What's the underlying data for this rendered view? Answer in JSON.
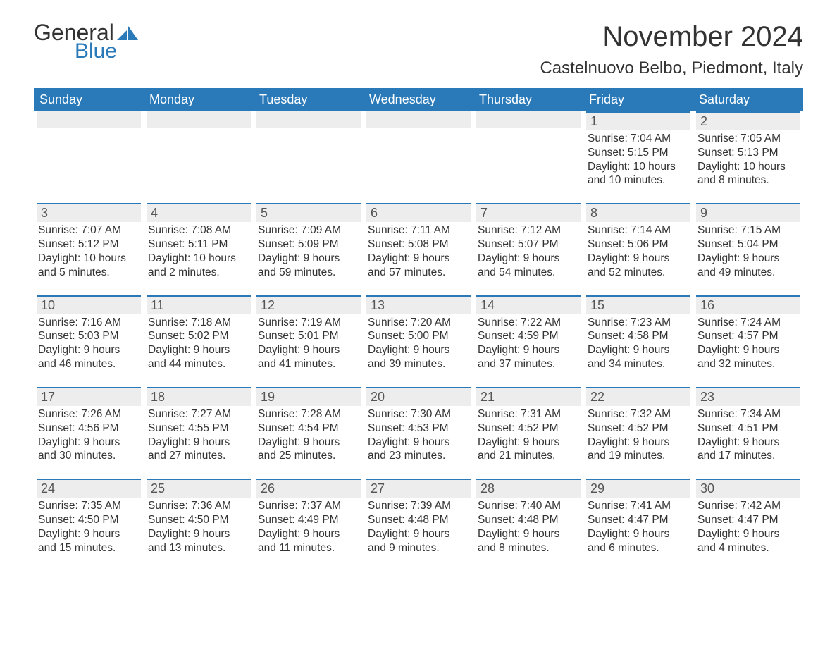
{
  "brand": {
    "word1": "General",
    "word2": "Blue",
    "accent": "#2a7ab9"
  },
  "title": "November 2024",
  "location": "Castelnuovo Belbo, Piedmont, Italy",
  "colors": {
    "header_bg": "#2a7ab9",
    "header_fg": "#ffffff",
    "daynum_bg": "#ededed",
    "daynum_border": "#2a7ab9",
    "text": "#333333",
    "page_bg": "#ffffff"
  },
  "days_of_week": [
    "Sunday",
    "Monday",
    "Tuesday",
    "Wednesday",
    "Thursday",
    "Friday",
    "Saturday"
  ],
  "weeks": [
    [
      {
        "blank": true
      },
      {
        "blank": true
      },
      {
        "blank": true
      },
      {
        "blank": true
      },
      {
        "blank": true
      },
      {
        "n": "1",
        "sunrise": "Sunrise: 7:04 AM",
        "sunset": "Sunset: 5:15 PM",
        "daylight": "Daylight: 10 hours and 10 minutes."
      },
      {
        "n": "2",
        "sunrise": "Sunrise: 7:05 AM",
        "sunset": "Sunset: 5:13 PM",
        "daylight": "Daylight: 10 hours and 8 minutes."
      }
    ],
    [
      {
        "n": "3",
        "sunrise": "Sunrise: 7:07 AM",
        "sunset": "Sunset: 5:12 PM",
        "daylight": "Daylight: 10 hours and 5 minutes."
      },
      {
        "n": "4",
        "sunrise": "Sunrise: 7:08 AM",
        "sunset": "Sunset: 5:11 PM",
        "daylight": "Daylight: 10 hours and 2 minutes."
      },
      {
        "n": "5",
        "sunrise": "Sunrise: 7:09 AM",
        "sunset": "Sunset: 5:09 PM",
        "daylight": "Daylight: 9 hours and 59 minutes."
      },
      {
        "n": "6",
        "sunrise": "Sunrise: 7:11 AM",
        "sunset": "Sunset: 5:08 PM",
        "daylight": "Daylight: 9 hours and 57 minutes."
      },
      {
        "n": "7",
        "sunrise": "Sunrise: 7:12 AM",
        "sunset": "Sunset: 5:07 PM",
        "daylight": "Daylight: 9 hours and 54 minutes."
      },
      {
        "n": "8",
        "sunrise": "Sunrise: 7:14 AM",
        "sunset": "Sunset: 5:06 PM",
        "daylight": "Daylight: 9 hours and 52 minutes."
      },
      {
        "n": "9",
        "sunrise": "Sunrise: 7:15 AM",
        "sunset": "Sunset: 5:04 PM",
        "daylight": "Daylight: 9 hours and 49 minutes."
      }
    ],
    [
      {
        "n": "10",
        "sunrise": "Sunrise: 7:16 AM",
        "sunset": "Sunset: 5:03 PM",
        "daylight": "Daylight: 9 hours and 46 minutes."
      },
      {
        "n": "11",
        "sunrise": "Sunrise: 7:18 AM",
        "sunset": "Sunset: 5:02 PM",
        "daylight": "Daylight: 9 hours and 44 minutes."
      },
      {
        "n": "12",
        "sunrise": "Sunrise: 7:19 AM",
        "sunset": "Sunset: 5:01 PM",
        "daylight": "Daylight: 9 hours and 41 minutes."
      },
      {
        "n": "13",
        "sunrise": "Sunrise: 7:20 AM",
        "sunset": "Sunset: 5:00 PM",
        "daylight": "Daylight: 9 hours and 39 minutes."
      },
      {
        "n": "14",
        "sunrise": "Sunrise: 7:22 AM",
        "sunset": "Sunset: 4:59 PM",
        "daylight": "Daylight: 9 hours and 37 minutes."
      },
      {
        "n": "15",
        "sunrise": "Sunrise: 7:23 AM",
        "sunset": "Sunset: 4:58 PM",
        "daylight": "Daylight: 9 hours and 34 minutes."
      },
      {
        "n": "16",
        "sunrise": "Sunrise: 7:24 AM",
        "sunset": "Sunset: 4:57 PM",
        "daylight": "Daylight: 9 hours and 32 minutes."
      }
    ],
    [
      {
        "n": "17",
        "sunrise": "Sunrise: 7:26 AM",
        "sunset": "Sunset: 4:56 PM",
        "daylight": "Daylight: 9 hours and 30 minutes."
      },
      {
        "n": "18",
        "sunrise": "Sunrise: 7:27 AM",
        "sunset": "Sunset: 4:55 PM",
        "daylight": "Daylight: 9 hours and 27 minutes."
      },
      {
        "n": "19",
        "sunrise": "Sunrise: 7:28 AM",
        "sunset": "Sunset: 4:54 PM",
        "daylight": "Daylight: 9 hours and 25 minutes."
      },
      {
        "n": "20",
        "sunrise": "Sunrise: 7:30 AM",
        "sunset": "Sunset: 4:53 PM",
        "daylight": "Daylight: 9 hours and 23 minutes."
      },
      {
        "n": "21",
        "sunrise": "Sunrise: 7:31 AM",
        "sunset": "Sunset: 4:52 PM",
        "daylight": "Daylight: 9 hours and 21 minutes."
      },
      {
        "n": "22",
        "sunrise": "Sunrise: 7:32 AM",
        "sunset": "Sunset: 4:52 PM",
        "daylight": "Daylight: 9 hours and 19 minutes."
      },
      {
        "n": "23",
        "sunrise": "Sunrise: 7:34 AM",
        "sunset": "Sunset: 4:51 PM",
        "daylight": "Daylight: 9 hours and 17 minutes."
      }
    ],
    [
      {
        "n": "24",
        "sunrise": "Sunrise: 7:35 AM",
        "sunset": "Sunset: 4:50 PM",
        "daylight": "Daylight: 9 hours and 15 minutes."
      },
      {
        "n": "25",
        "sunrise": "Sunrise: 7:36 AM",
        "sunset": "Sunset: 4:50 PM",
        "daylight": "Daylight: 9 hours and 13 minutes."
      },
      {
        "n": "26",
        "sunrise": "Sunrise: 7:37 AM",
        "sunset": "Sunset: 4:49 PM",
        "daylight": "Daylight: 9 hours and 11 minutes."
      },
      {
        "n": "27",
        "sunrise": "Sunrise: 7:39 AM",
        "sunset": "Sunset: 4:48 PM",
        "daylight": "Daylight: 9 hours and 9 minutes."
      },
      {
        "n": "28",
        "sunrise": "Sunrise: 7:40 AM",
        "sunset": "Sunset: 4:48 PM",
        "daylight": "Daylight: 9 hours and 8 minutes."
      },
      {
        "n": "29",
        "sunrise": "Sunrise: 7:41 AM",
        "sunset": "Sunset: 4:47 PM",
        "daylight": "Daylight: 9 hours and 6 minutes."
      },
      {
        "n": "30",
        "sunrise": "Sunrise: 7:42 AM",
        "sunset": "Sunset: 4:47 PM",
        "daylight": "Daylight: 9 hours and 4 minutes."
      }
    ]
  ]
}
